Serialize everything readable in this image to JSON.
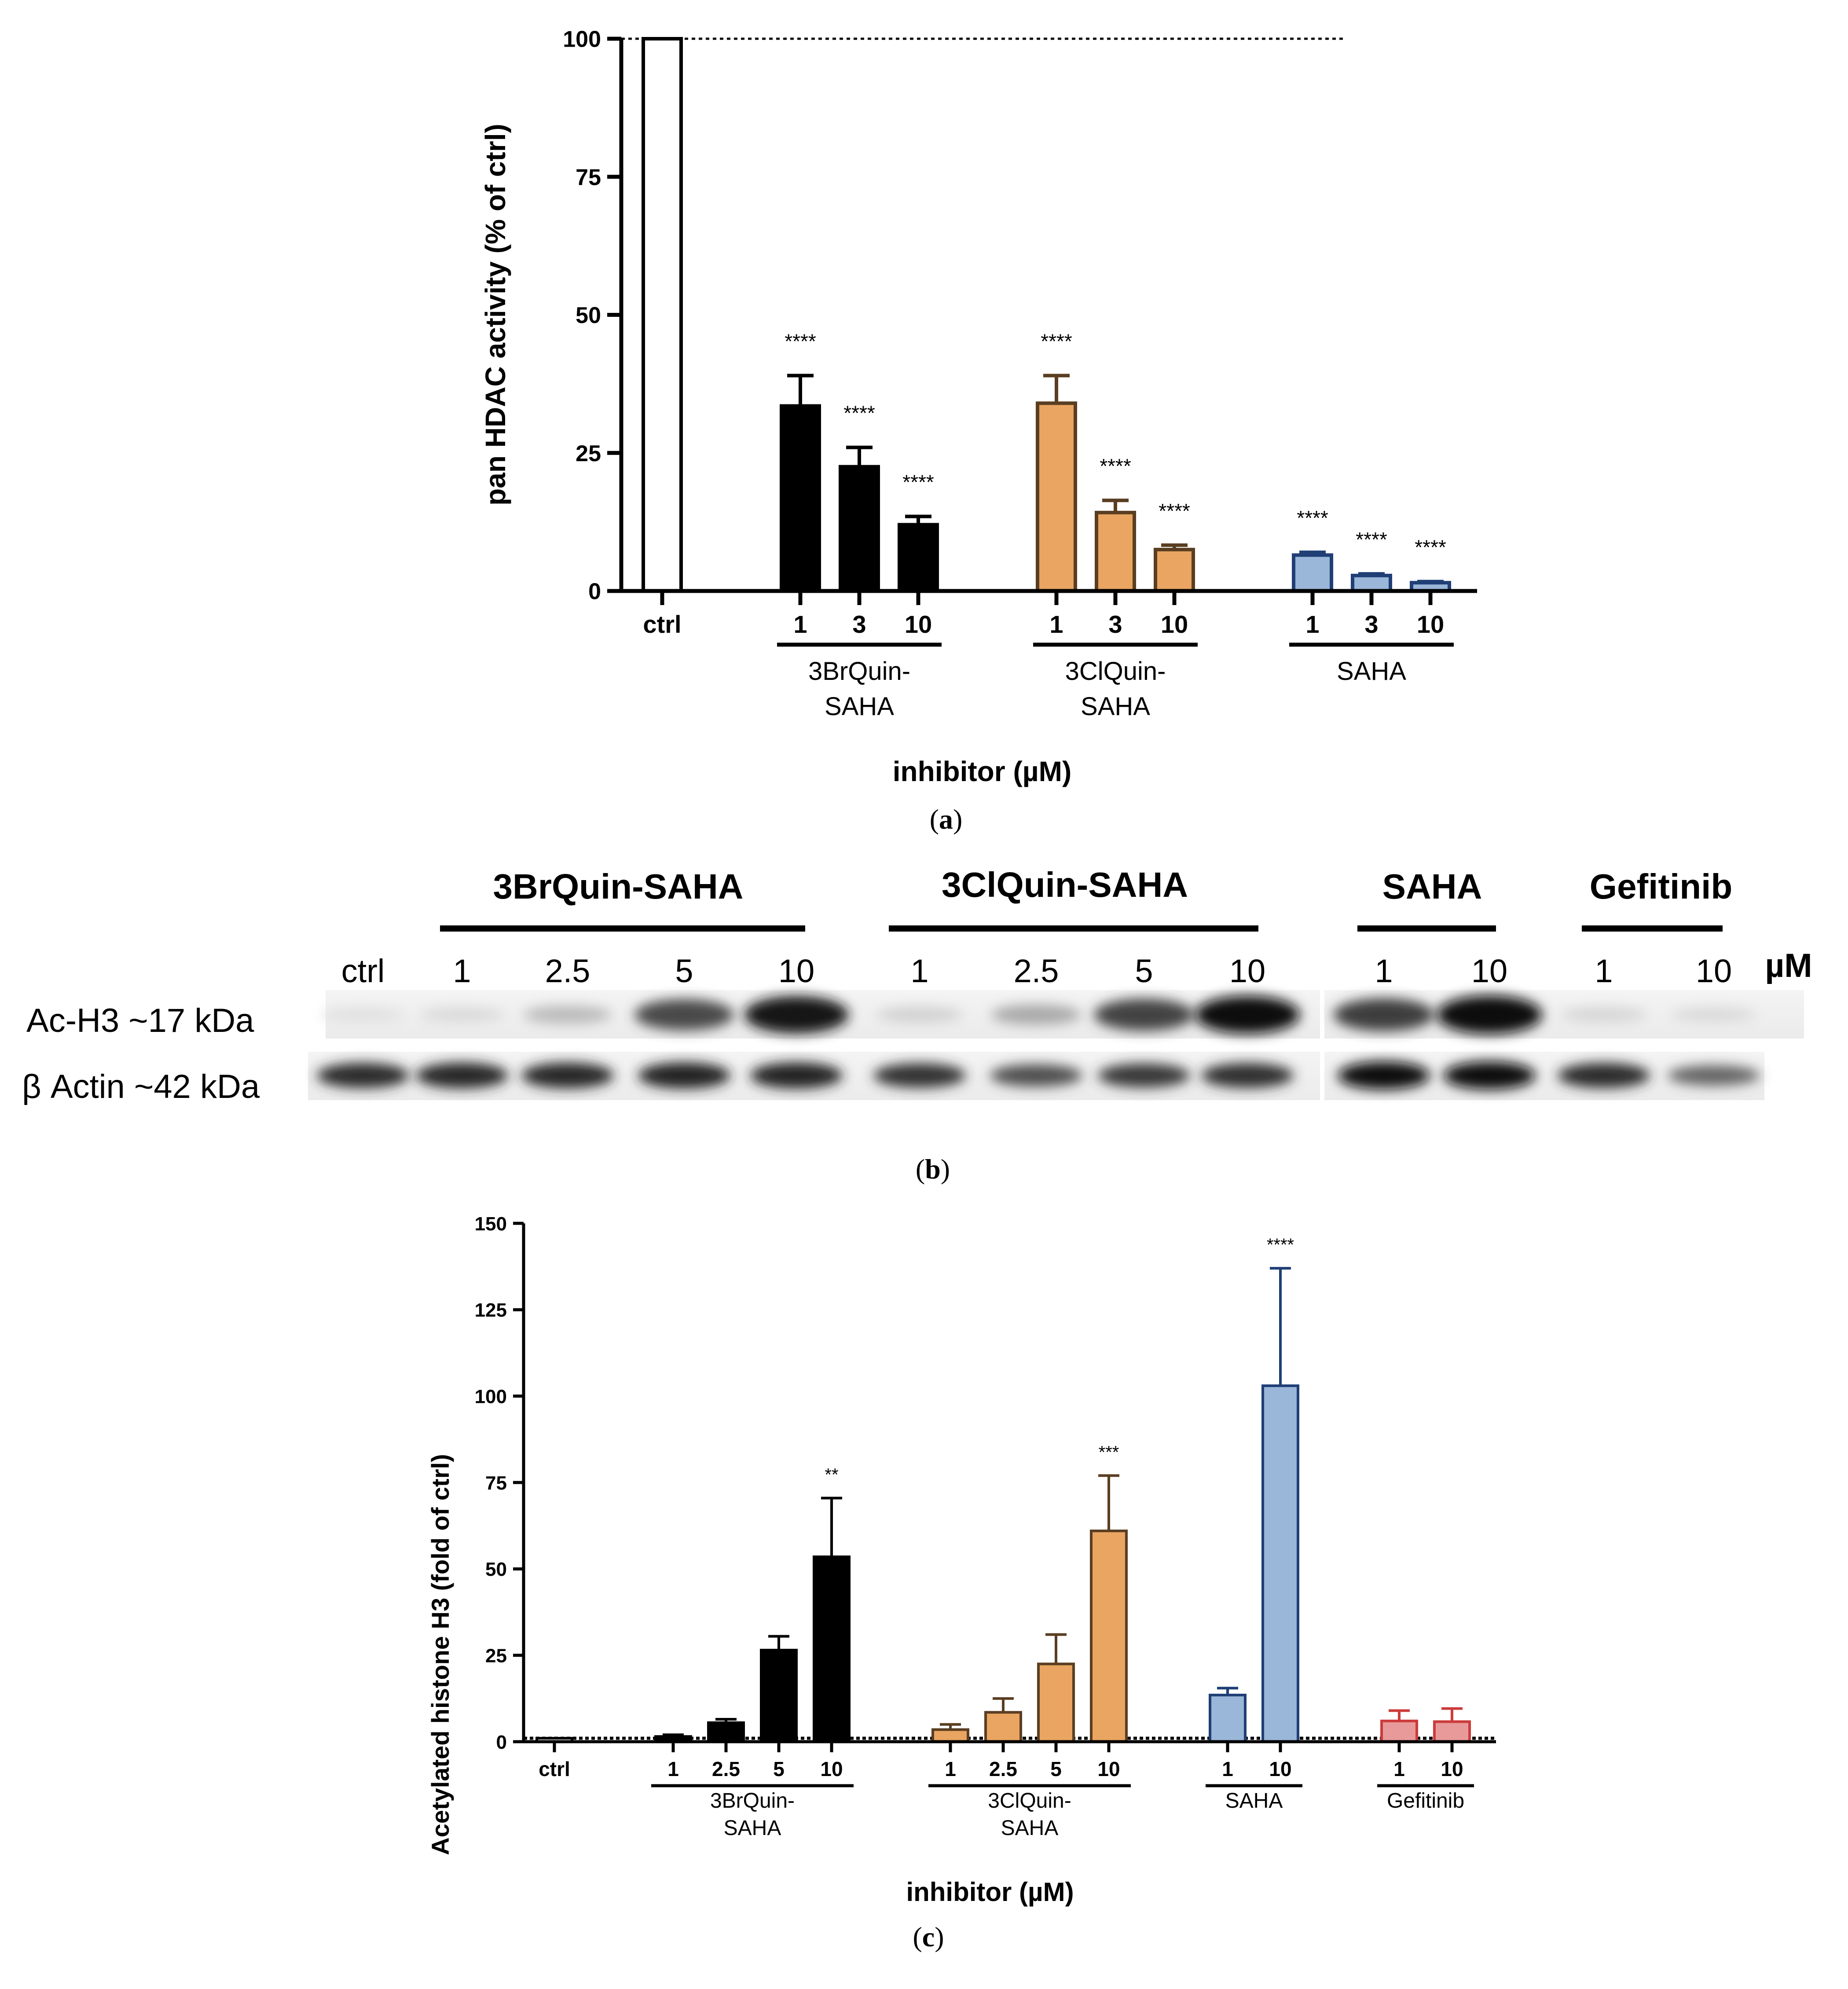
{
  "panel_a": {
    "caption_open": "(",
    "caption_letter": "a",
    "caption_close": ")"
  },
  "panel_b": {
    "caption_open": "(",
    "caption_letter": "b",
    "caption_close": ")",
    "groups": [
      {
        "name": "3BrQuin-SAHA",
        "lanes": [
          "1",
          "2.5",
          "5",
          "10"
        ]
      },
      {
        "name": "3ClQuin-SAHA",
        "lanes": [
          "1",
          "2.5",
          "5",
          "10"
        ]
      },
      {
        "name": "SAHA",
        "lanes": [
          "1",
          "10"
        ]
      },
      {
        "name": "Gefitinib",
        "lanes": [
          "1",
          "10"
        ]
      }
    ],
    "ctrl_label": "ctrl",
    "unit_label": "µM",
    "row_labels": {
      "ac_h3": "Ac-H3 ~17 kDa",
      "actin": "β Actin ~42 kDa"
    },
    "band_intensity": {
      "ac_h3": [
        0.05,
        0.08,
        0.22,
        0.72,
        0.95,
        0.12,
        0.3,
        0.75,
        0.97,
        0.78,
        1.0,
        0.1,
        0.08
      ],
      "actin": [
        0.85,
        0.88,
        0.88,
        0.9,
        0.9,
        0.82,
        0.7,
        0.8,
        0.84,
        1.0,
        1.0,
        0.85,
        0.6
      ]
    }
  },
  "panel_c": {
    "caption_open": "(",
    "caption_letter": "c",
    "caption_close": ")"
  },
  "chart_data": [
    {
      "id": "a",
      "type": "bar",
      "title": "",
      "ylabel": "pan HDAC activity (% of ctrl)",
      "xlabel": "inhibitor (µM)",
      "ylim": [
        0,
        100
      ],
      "yticks": [
        0,
        25,
        50,
        75,
        100
      ],
      "reference_line": 100,
      "ctrl": {
        "label": "ctrl",
        "value": 100,
        "error": 0,
        "color": "#ffffff"
      },
      "groups": [
        {
          "name_lines": [
            "3BrQuin-",
            "SAHA"
          ],
          "color": "#000000",
          "stroke": "#000000",
          "categories": [
            "1",
            "3",
            "10"
          ],
          "values": [
            33.5,
            22.5,
            12
          ],
          "errors": [
            5.5,
            3.5,
            1.5
          ],
          "significance": [
            "****",
            "****",
            "****"
          ]
        },
        {
          "name_lines": [
            "3ClQuin-",
            "SAHA"
          ],
          "color": "#e9a561",
          "stroke": "#5a3e22",
          "categories": [
            "1",
            "3",
            "10"
          ],
          "values": [
            34,
            14.2,
            7.5
          ],
          "errors": [
            5,
            2.2,
            0.8
          ],
          "significance": [
            "****",
            "****",
            "****"
          ]
        },
        {
          "name_lines": [
            "SAHA"
          ],
          "color": "#9ab6d8",
          "stroke": "#1f3f75",
          "categories": [
            "1",
            "3",
            "10"
          ],
          "values": [
            6.5,
            2.8,
            1.5
          ],
          "errors": [
            0.5,
            0.3,
            0.2
          ],
          "significance": [
            "****",
            "****",
            "****"
          ]
        }
      ]
    },
    {
      "id": "c",
      "type": "bar",
      "title": "",
      "ylabel": "Acetylated histone H3 (fold of ctrl)",
      "xlabel": "inhibitor (µM)",
      "ylim": [
        0,
        150
      ],
      "yticks": [
        0,
        25,
        50,
        75,
        100,
        125,
        150
      ],
      "reference_line": 1,
      "ctrl": {
        "label": "ctrl",
        "value": 1,
        "error": 0,
        "color": "#ffffff"
      },
      "groups": [
        {
          "name_lines": [
            "3BrQuin-",
            "SAHA"
          ],
          "color": "#000000",
          "stroke": "#000000",
          "categories": [
            "1",
            "2.5",
            "5",
            "10"
          ],
          "values": [
            1.5,
            5.5,
            26.5,
            53.5
          ],
          "errors": [
            0.5,
            1,
            4,
            17
          ],
          "significance": [
            "",
            "",
            "",
            "**"
          ]
        },
        {
          "name_lines": [
            "3ClQuin-",
            "SAHA"
          ],
          "color": "#e9a561",
          "stroke": "#5a3e22",
          "categories": [
            "1",
            "2.5",
            "5",
            "10"
          ],
          "values": [
            3.5,
            8.5,
            22.5,
            61
          ],
          "errors": [
            1.5,
            4,
            8.5,
            16
          ],
          "significance": [
            "",
            "",
            "",
            "***"
          ]
        },
        {
          "name_lines": [
            "SAHA"
          ],
          "color": "#9ab6d8",
          "stroke": "#1f3f75",
          "categories": [
            "1",
            "10"
          ],
          "values": [
            13.5,
            103
          ],
          "errors": [
            2,
            34
          ],
          "significance": [
            "",
            "****"
          ]
        },
        {
          "name_lines": [
            "Gefitinib"
          ],
          "color": "#e89a9a",
          "stroke": "#cc3b3b",
          "categories": [
            "1",
            "10"
          ],
          "values": [
            6,
            5.8
          ],
          "errors": [
            3,
            3.8
          ],
          "significance": [
            "",
            ""
          ]
        }
      ]
    }
  ]
}
